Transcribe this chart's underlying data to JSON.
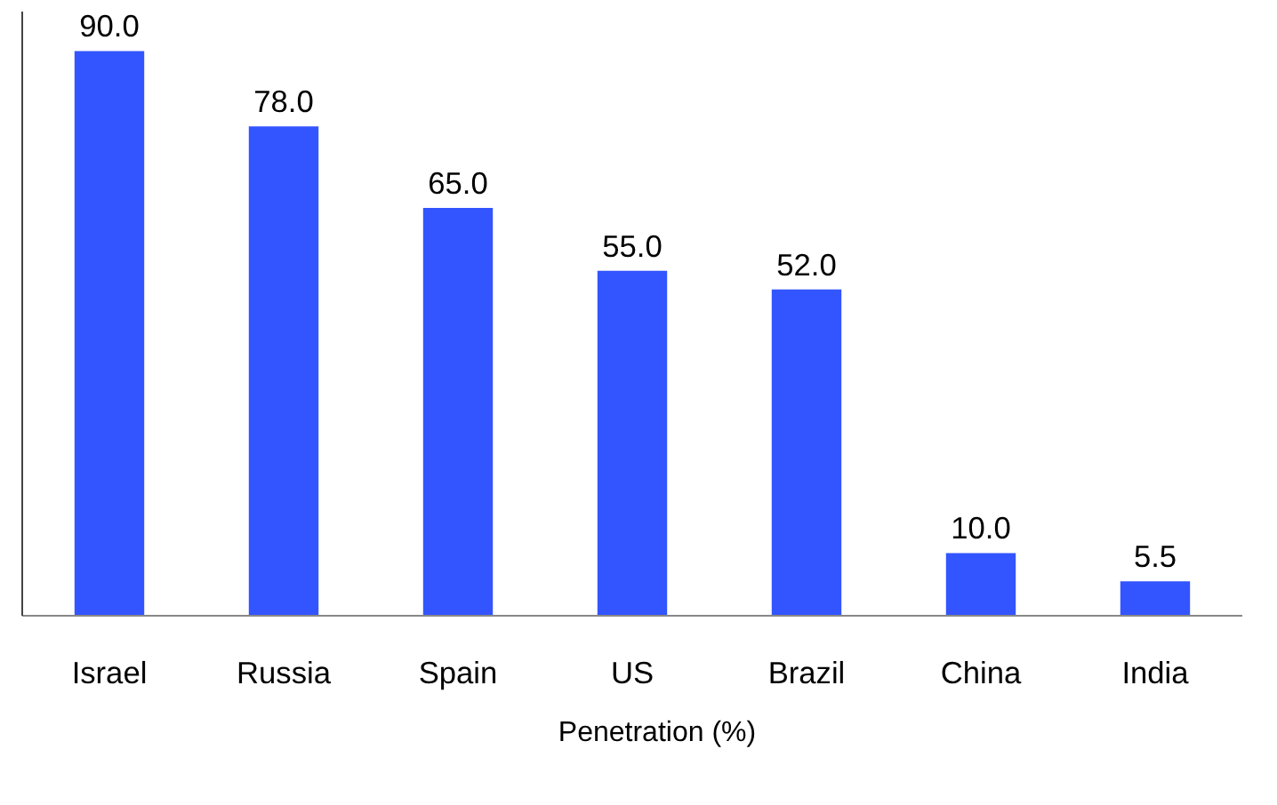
{
  "chart_data": {
    "type": "bar",
    "categories": [
      "Israel",
      "Russia",
      "Spain",
      "US",
      "Brazil",
      "China",
      "India"
    ],
    "series": [
      {
        "name": "Penetration (%)",
        "color": "#3355ff",
        "values": [
          90.0,
          78.0,
          65.0,
          55.0,
          52.0,
          10.0,
          5.5
        ],
        "value_labels": [
          "90.0",
          "78.0",
          "65.0",
          "55.0",
          "52.0",
          "10.0",
          "5.5"
        ]
      }
    ],
    "legend": "bottom"
  }
}
